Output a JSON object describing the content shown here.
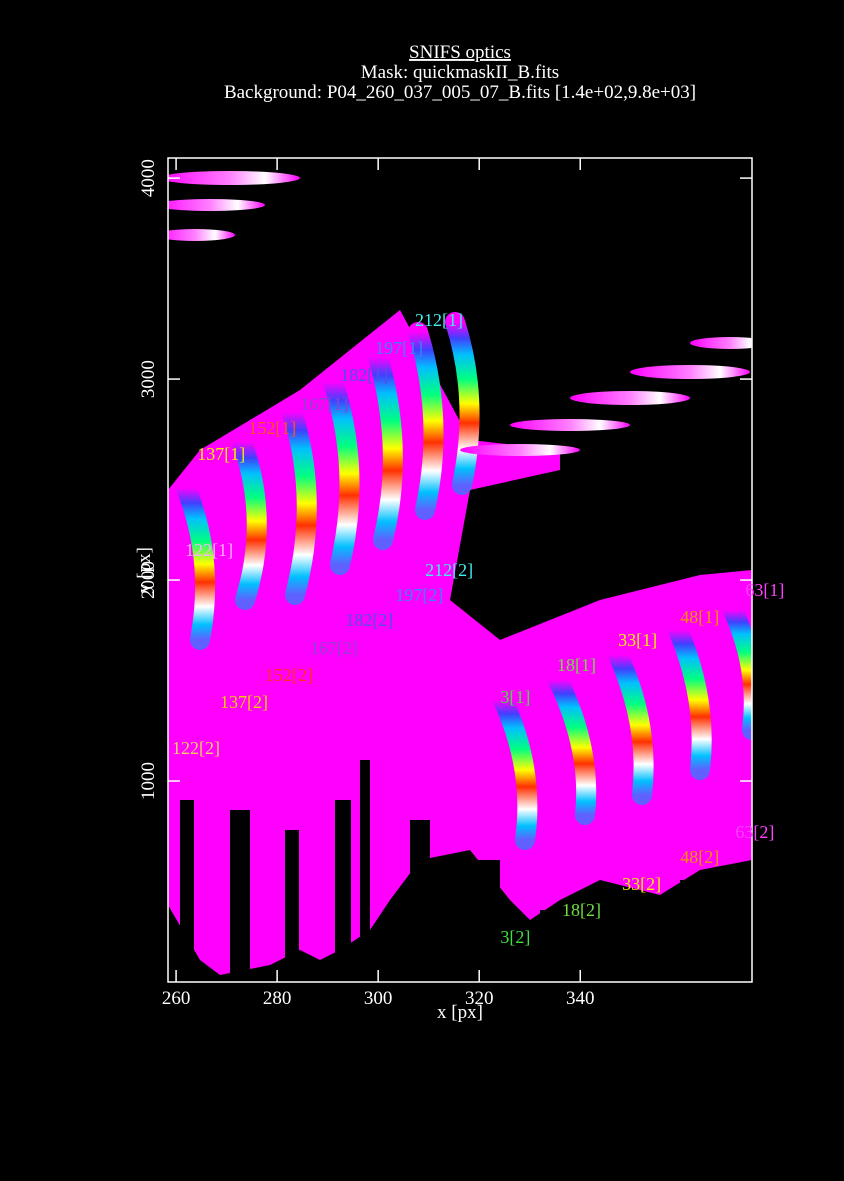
{
  "chart_data": {
    "type": "scatter",
    "title": "SNIFS optics",
    "subtitles": [
      "Mask: quickmaskII_B.fits",
      "Background: P04_260_037_005_07_B.fits [1.4e+02,9.8e+03]"
    ],
    "x_label": "x [px]",
    "y_label": "y [px]",
    "xlim": [
      258.4,
      374
    ],
    "ylim": [
      0,
      4100
    ],
    "xticks": [
      260,
      280,
      300,
      320,
      340
    ],
    "yticks": [
      1000,
      2000,
      3000,
      4000
    ],
    "annotations": [
      {
        "text": "212[1]",
        "x": 307.3,
        "y": 3293,
        "color": "#40f0f0"
      },
      {
        "text": "197[1]",
        "x": 299.4,
        "y": 3154,
        "color": "#4080ff"
      },
      {
        "text": "182[1]",
        "x": 292.5,
        "y": 3020,
        "color": "#5050e0"
      },
      {
        "text": "167[1]",
        "x": 284.6,
        "y": 2876,
        "color": "#9040d0"
      },
      {
        "text": "152[1]",
        "x": 274.3,
        "y": 2756,
        "color": "#ff5020"
      },
      {
        "text": "137[1]",
        "x": 264.2,
        "y": 2627,
        "color": "#f0f000"
      },
      {
        "text": "122[1]",
        "x": 261.8,
        "y": 2149,
        "color": "#ffb0ff"
      },
      {
        "text": "212[2]",
        "x": 309.3,
        "y": 2050,
        "color": "#40f0f0"
      },
      {
        "text": "197[2]",
        "x": 303.4,
        "y": 1925,
        "color": "#4080ff"
      },
      {
        "text": "182[2]",
        "x": 293.5,
        "y": 1801,
        "color": "#5050e0"
      },
      {
        "text": "167[2]",
        "x": 286.5,
        "y": 1662,
        "color": "#9040d0"
      },
      {
        "text": "152[2]",
        "x": 277.6,
        "y": 1527,
        "color": "#ff3020"
      },
      {
        "text": "137[2]",
        "x": 268.7,
        "y": 1393,
        "color": "#f0d000"
      },
      {
        "text": "122[2]",
        "x": 259.2,
        "y": 1164,
        "color": "#f0d060"
      },
      {
        "text": "3[1]",
        "x": 324.2,
        "y": 1418,
        "color": "#40e040"
      },
      {
        "text": "18[1]",
        "x": 335.4,
        "y": 1577,
        "color": "#70e040"
      },
      {
        "text": "33[1]",
        "x": 347.5,
        "y": 1701,
        "color": "#f0f000"
      },
      {
        "text": "48[1]",
        "x": 359.8,
        "y": 1816,
        "color": "#ff9000"
      },
      {
        "text": "63[1]",
        "x": 372.7,
        "y": 1950,
        "color": "#ff40ff"
      },
      {
        "text": "63[2]",
        "x": 370.7,
        "y": 746,
        "color": "#ff40ff"
      },
      {
        "text": "48[2]",
        "x": 359.8,
        "y": 622,
        "color": "#ff9000"
      },
      {
        "text": "33[2]",
        "x": 348.3,
        "y": 488,
        "color": "#f0f000"
      },
      {
        "text": "18[2]",
        "x": 336.4,
        "y": 358,
        "color": "#70e040"
      },
      {
        "text": "3[2]",
        "x": 324.2,
        "y": 224,
        "color": "#40e040"
      }
    ]
  }
}
